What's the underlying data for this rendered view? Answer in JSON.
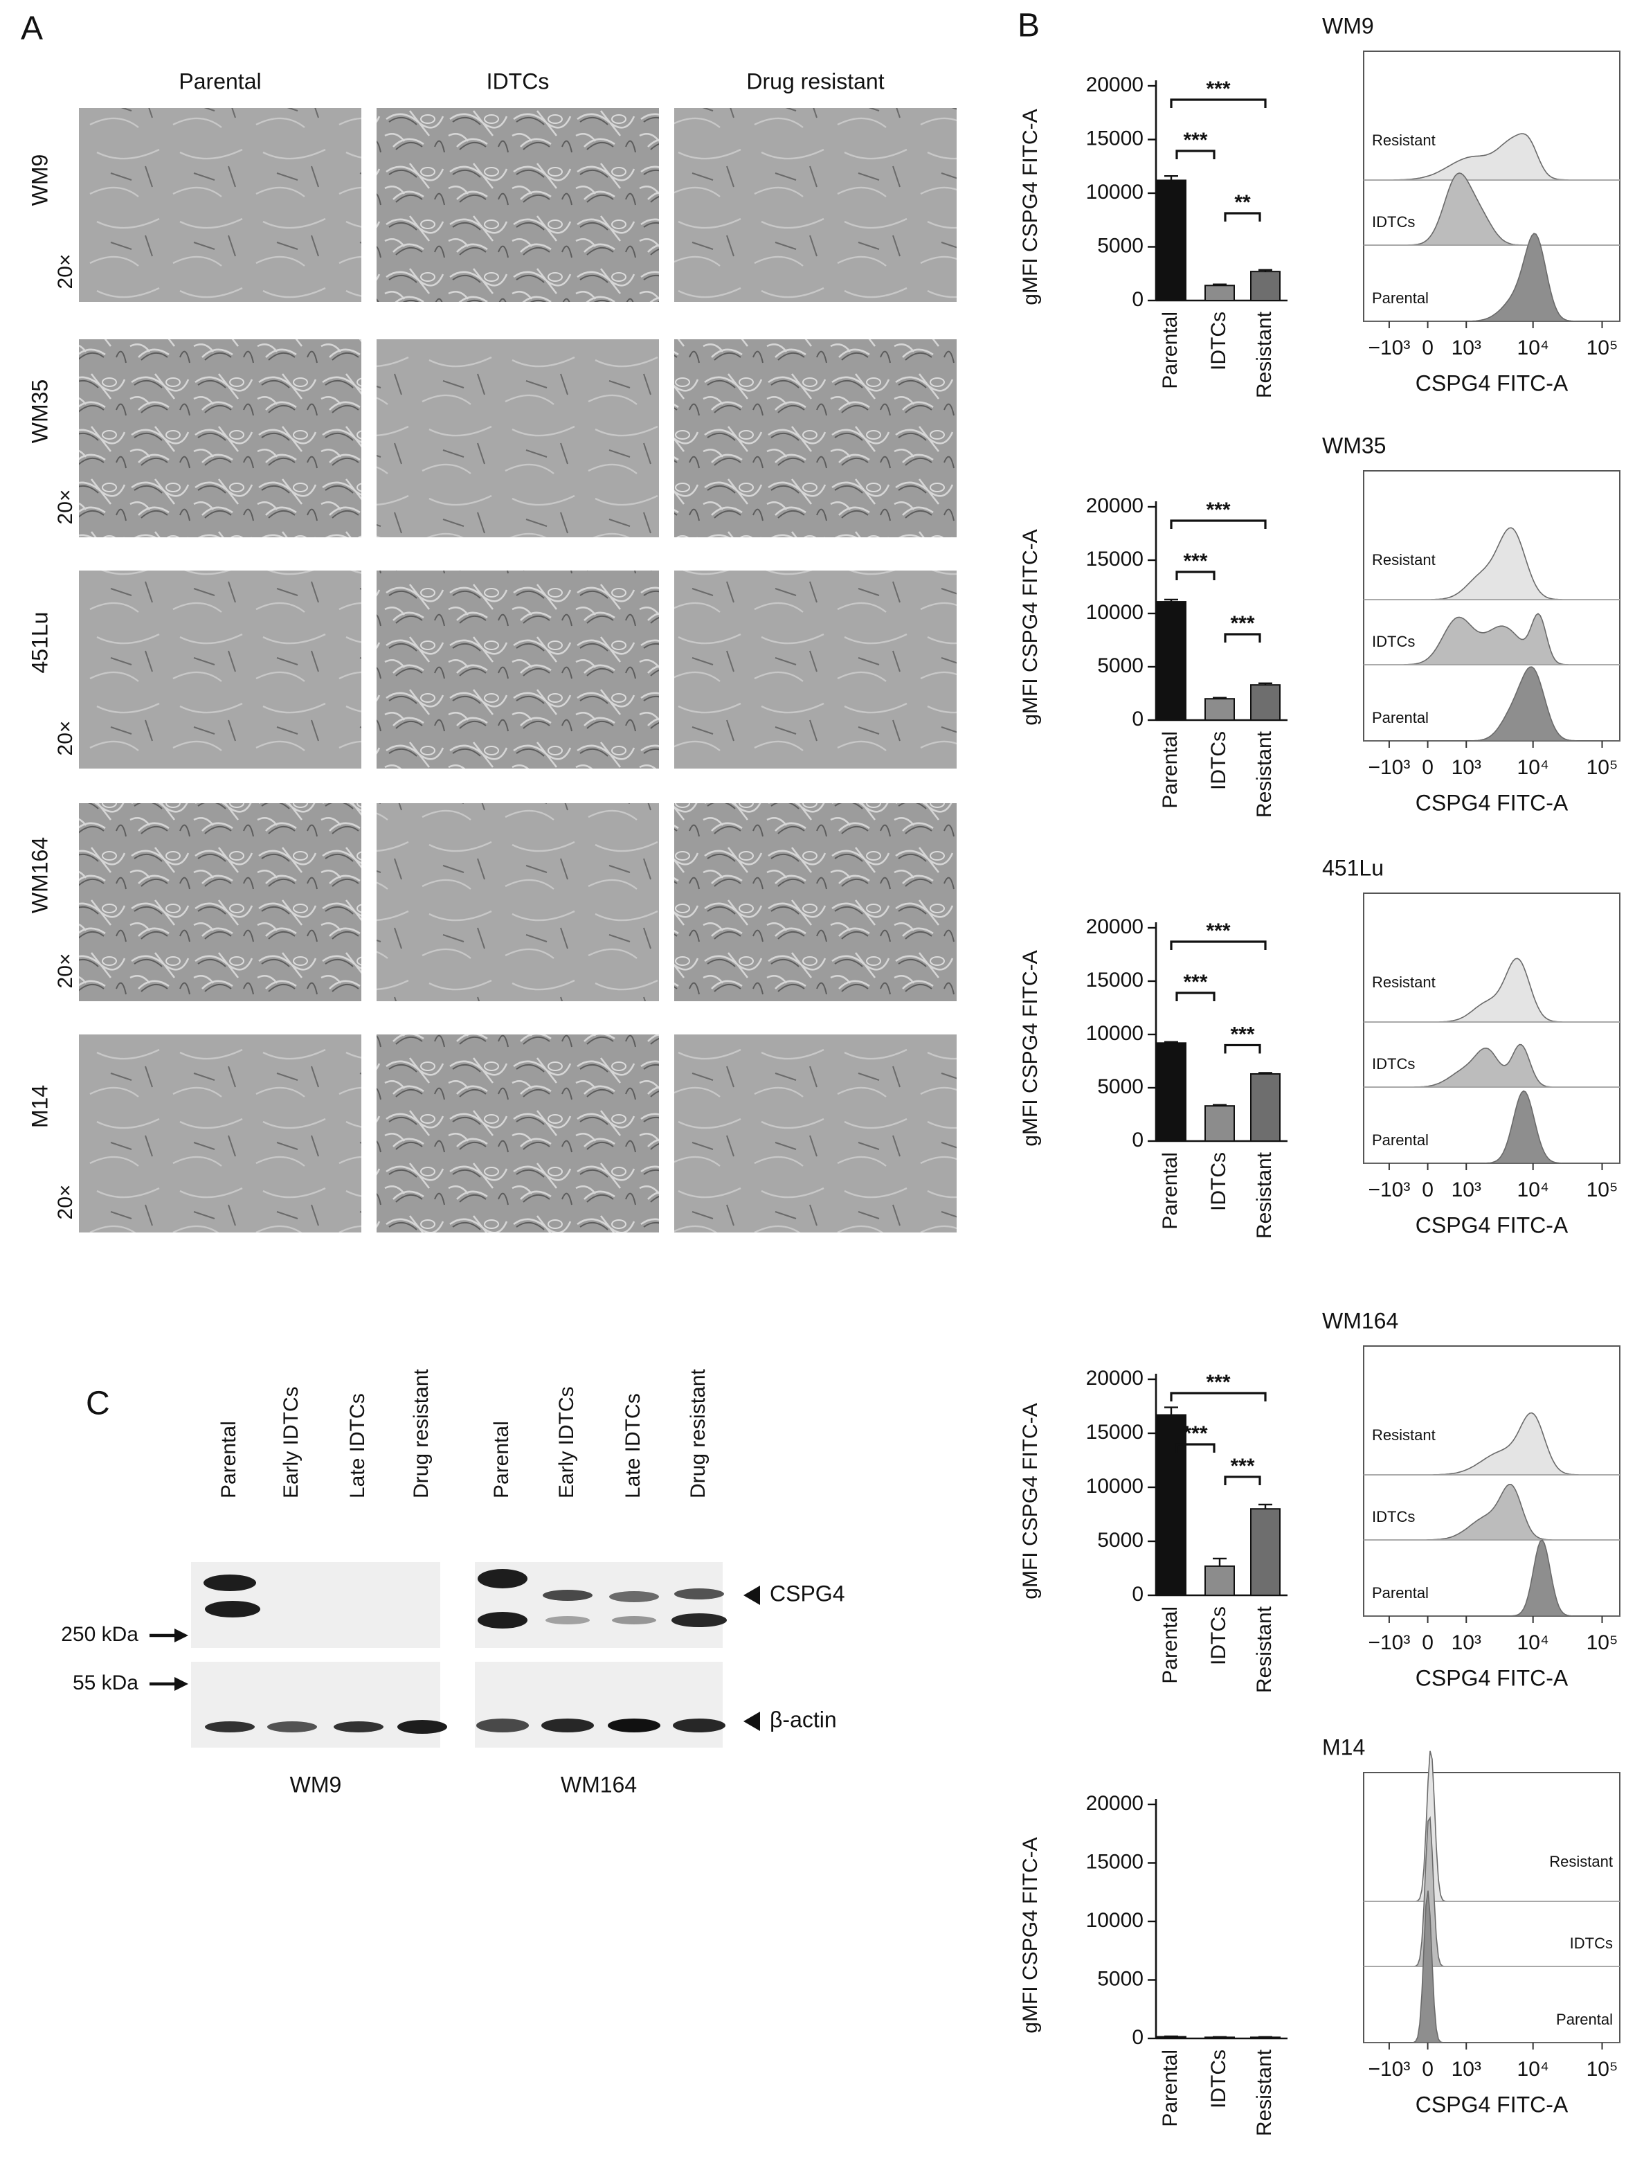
{
  "panel_a": {
    "label": "A",
    "columns": [
      "Parental",
      "IDTCs",
      "Drug resistant"
    ],
    "rows": [
      {
        "cell_line": "WM9",
        "magnification": "20×"
      },
      {
        "cell_line": "WM35",
        "magnification": "20×"
      },
      {
        "cell_line": "451Lu",
        "magnification": "20×"
      },
      {
        "cell_line": "WM164",
        "magnification": "20×"
      },
      {
        "cell_line": "M14",
        "magnification": "20×"
      }
    ]
  },
  "panel_b_label": "B",
  "chart_data": [
    {
      "type": "bar",
      "ylabel": "gMFI CSPG4 FITC-A",
      "categories": [
        "Parental",
        "IDTCs",
        "Resistant"
      ],
      "values": [
        11200,
        1400,
        2700
      ],
      "errors": [
        400,
        100,
        150
      ],
      "colors": [
        "#111111",
        "#8c8c8c",
        "#6e6e6e"
      ],
      "ylim": [
        0,
        20000
      ],
      "yticks": [
        0,
        5000,
        10000,
        15000,
        20000
      ],
      "significance": [
        {
          "pair": [
            0,
            2
          ],
          "label": "***"
        },
        {
          "pair": [
            0,
            1
          ],
          "label": "***"
        },
        {
          "pair": [
            1,
            2
          ],
          "label": "**"
        }
      ]
    },
    {
      "type": "bar",
      "ylabel": "gMFI CSPG4 FITC-A",
      "categories": [
        "Parental",
        "IDTCs",
        "Resistant"
      ],
      "values": [
        11100,
        2000,
        3300
      ],
      "errors": [
        200,
        100,
        150
      ],
      "colors": [
        "#111111",
        "#8c8c8c",
        "#6e6e6e"
      ],
      "ylim": [
        0,
        20000
      ],
      "yticks": [
        0,
        5000,
        10000,
        15000,
        20000
      ],
      "significance": [
        {
          "pair": [
            0,
            2
          ],
          "label": "***"
        },
        {
          "pair": [
            0,
            1
          ],
          "label": "***"
        },
        {
          "pair": [
            1,
            2
          ],
          "label": "***"
        }
      ]
    },
    {
      "type": "bar",
      "ylabel": "gMFI CSPG4 FITC-A",
      "categories": [
        "Parental",
        "IDTCs",
        "Resistant"
      ],
      "values": [
        9200,
        3300,
        6300
      ],
      "errors": [
        100,
        100,
        100
      ],
      "colors": [
        "#111111",
        "#8c8c8c",
        "#6e6e6e"
      ],
      "ylim": [
        0,
        20000
      ],
      "yticks": [
        0,
        5000,
        10000,
        15000,
        20000
      ],
      "significance": [
        {
          "pair": [
            0,
            2
          ],
          "label": "***"
        },
        {
          "pair": [
            0,
            1
          ],
          "label": "***"
        },
        {
          "pair": [
            1,
            2
          ],
          "label": "***"
        }
      ]
    },
    {
      "type": "bar",
      "ylabel": "gMFI CSPG4 FITC-A",
      "categories": [
        "Parental",
        "IDTCs",
        "Resistant"
      ],
      "values": [
        16700,
        2700,
        8000
      ],
      "errors": [
        700,
        700,
        400
      ],
      "colors": [
        "#111111",
        "#8c8c8c",
        "#6e6e6e"
      ],
      "ylim": [
        0,
        20000
      ],
      "yticks": [
        0,
        5000,
        10000,
        15000,
        20000
      ],
      "significance": [
        {
          "pair": [
            0,
            2
          ],
          "label": "***"
        },
        {
          "pair": [
            0,
            1
          ],
          "label": "***"
        },
        {
          "pair": [
            1,
            2
          ],
          "label": "***"
        }
      ]
    },
    {
      "type": "bar",
      "ylabel": "gMFI CSPG4 FITC-A",
      "categories": [
        "Parental",
        "IDTCs",
        "Resistant"
      ],
      "values": [
        150,
        100,
        100
      ],
      "errors": [
        30,
        30,
        30
      ],
      "colors": [
        "#111111",
        "#8c8c8c",
        "#6e6e6e"
      ],
      "ylim": [
        0,
        20000
      ],
      "yticks": [
        0,
        5000,
        10000,
        15000,
        20000
      ],
      "significance": []
    }
  ],
  "histograms": [
    {
      "title": "WM9",
      "xlabel": "CSPG4 FITC-A",
      "layers": [
        "Resistant",
        "IDTCs",
        "Parental"
      ],
      "xlim": [
        -2500,
        180000
      ],
      "xticks": [
        {
          "value": -1000,
          "label": "−10³"
        },
        0,
        {
          "value": 1000,
          "label": "10³"
        },
        {
          "value": 10000,
          "label": "10⁴"
        },
        {
          "value": 100000,
          "label": "10⁵"
        }
      ]
    },
    {
      "title": "WM35",
      "xlabel": "CSPG4 FITC-A",
      "layers": [
        "Resistant",
        "IDTCs",
        "Parental"
      ],
      "xlim": [
        -2500,
        180000
      ],
      "xticks": [
        {
          "value": -1000,
          "label": "−10³"
        },
        0,
        {
          "value": 1000,
          "label": "10³"
        },
        {
          "value": 10000,
          "label": "10⁴"
        },
        {
          "value": 100000,
          "label": "10⁵"
        }
      ]
    },
    {
      "title": "451Lu",
      "xlabel": "CSPG4 FITC-A",
      "layers": [
        "Resistant",
        "IDTCs",
        "Parental"
      ],
      "xlim": [
        -2500,
        180000
      ],
      "xticks": [
        {
          "value": -1000,
          "label": "−10³"
        },
        0,
        {
          "value": 1000,
          "label": "10³"
        },
        {
          "value": 10000,
          "label": "10⁴"
        },
        {
          "value": 100000,
          "label": "10⁵"
        }
      ]
    },
    {
      "title": "WM164",
      "xlabel": "CSPG4 FITC-A",
      "layers": [
        "Resistant",
        "IDTCs",
        "Parental"
      ],
      "xlim": [
        -2500,
        180000
      ],
      "xticks": [
        {
          "value": -1000,
          "label": "−10³"
        },
        0,
        {
          "value": 1000,
          "label": "10³"
        },
        {
          "value": 10000,
          "label": "10⁴"
        },
        {
          "value": 100000,
          "label": "10⁵"
        }
      ]
    },
    {
      "title": "M14",
      "xlabel": "CSPG4 FITC-A",
      "layers": [
        "Resistant",
        "IDTCs",
        "Parental"
      ],
      "xlim": [
        -2500,
        180000
      ],
      "xticks": [
        {
          "value": -1000,
          "label": "−10³"
        },
        0,
        {
          "value": 1000,
          "label": "10³"
        },
        {
          "value": 10000,
          "label": "10⁴"
        },
        {
          "value": 100000,
          "label": "10⁵"
        }
      ]
    }
  ],
  "panel_c": {
    "label": "C",
    "lanes": [
      "Parental",
      "Early IDTCs",
      "Late IDTCs",
      "Drug resistant"
    ],
    "groups": [
      "WM9",
      "WM164"
    ],
    "markers": [
      "250 kDa",
      "55 kDa"
    ],
    "proteins": [
      "CSPG4",
      "β-actin"
    ]
  }
}
